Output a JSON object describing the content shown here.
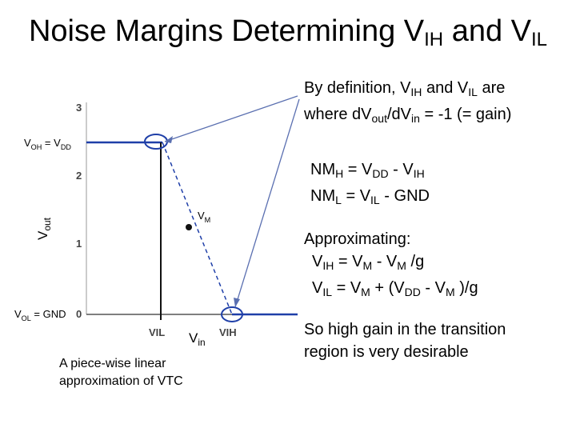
{
  "title": {
    "main": "Noise Margins Determining V",
    "sub1": "IH",
    "mid": " and V",
    "sub2": "IL"
  },
  "definition": {
    "line1_a": "By definition, V",
    "line1_sub1": "IH",
    "line1_b": " and V",
    "line1_sub2": "IL",
    "line1_c": " are",
    "line2_a": "where dV",
    "line2_sub1": "out",
    "line2_b": "/dV",
    "line2_sub2": "in",
    "line2_c": " = -1 (= gain)"
  },
  "plot": {
    "y_ticks": [
      "3",
      "2",
      "1",
      "0"
    ],
    "x_ticks": [
      "VIL",
      "VIH"
    ],
    "voh_label": {
      "a": "V",
      "sub1": "OH",
      "b": " = V",
      "sub2": "DD"
    },
    "vol_label": {
      "a": "V",
      "sub": "OL",
      "b": " = GND"
    },
    "ylabel": {
      "a": "V",
      "sub": "out"
    },
    "xlabel": {
      "a": "V",
      "sub": "in"
    },
    "vm_label": {
      "a": "V",
      "sub": "M"
    },
    "caption_line1": "A piece-wise linear",
    "caption_line2": "approximation of VTC",
    "colors": {
      "curve": "#1f3fa8",
      "marker": "#1f3fa8",
      "arrow": "#5a6fb0"
    }
  },
  "nm": {
    "h_a": "NM",
    "h_sub": "H",
    "h_b": " = V",
    "h_sub2": "DD",
    "h_c": " - V",
    "h_sub3": "IH",
    "l_a": "NM",
    "l_sub": "L",
    "l_b": " = V",
    "l_sub2": "IL",
    "l_c": " - GND"
  },
  "approx": {
    "heading": "Approximating:",
    "l1_a": "V",
    "l1_sub": "IH",
    "l1_b": " = V",
    "l1_sub2": "M",
    "l1_c": " - V",
    "l1_sub3": "M",
    "l1_d": " /g",
    "l2_a": "V",
    "l2_sub": "IL",
    "l2_b": " = V",
    "l2_sub2": "M",
    "l2_c": " + (V",
    "l2_sub3": "DD",
    "l2_d": " - V",
    "l2_sub4": "M",
    "l2_e": " )/g"
  },
  "conclusion": {
    "line1": "So high gain in the transition",
    "line2": "region is very desirable"
  }
}
